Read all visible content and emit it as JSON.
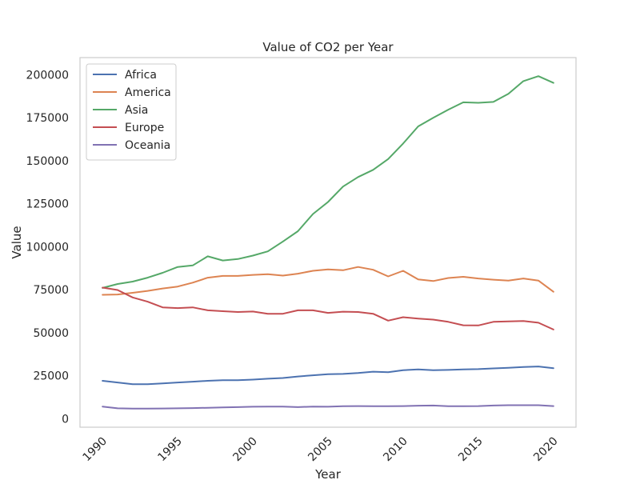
{
  "chart_data": {
    "type": "line",
    "title": "Value of CO2 per Year",
    "xlabel": "Year",
    "ylabel": "Value",
    "xlim": [
      1988.5,
      2021.5
    ],
    "ylim": [
      -5000,
      210000
    ],
    "xticks": [
      1990,
      1995,
      2000,
      2005,
      2010,
      2015,
      2020
    ],
    "yticks": [
      0,
      25000,
      50000,
      75000,
      100000,
      125000,
      150000,
      175000,
      200000
    ],
    "grid": false,
    "legend_position": "top-left",
    "x": [
      1990,
      1991,
      1992,
      1993,
      1994,
      1995,
      1996,
      1997,
      1998,
      1999,
      2000,
      2001,
      2002,
      2003,
      2004,
      2005,
      2006,
      2007,
      2008,
      2009,
      2010,
      2011,
      2012,
      2013,
      2014,
      2015,
      2016,
      2017,
      2018,
      2019,
      2020
    ],
    "series": [
      {
        "name": "Africa",
        "color": "#4c72b0",
        "values": [
          22000,
          21000,
          20000,
          20000,
          20500,
          21000,
          21500,
          22000,
          22300,
          22300,
          22700,
          23200,
          23600,
          24500,
          25200,
          25800,
          26000,
          26500,
          27300,
          27000,
          28200,
          28600,
          28200,
          28300,
          28600,
          28800,
          29200,
          29600,
          30000,
          30300,
          29300
        ]
      },
      {
        "name": "America",
        "color": "#dd8452",
        "values": [
          72000,
          72200,
          73200,
          74300,
          75700,
          76800,
          79100,
          82000,
          83000,
          83000,
          83600,
          84000,
          83200,
          84300,
          86000,
          86800,
          86300,
          88200,
          86600,
          82700,
          86000,
          81000,
          80000,
          81800,
          82500,
          81500,
          80800,
          80300,
          81500,
          80300,
          73800
        ]
      },
      {
        "name": "Asia",
        "color": "#55a868",
        "values": [
          76000,
          78300,
          79700,
          82000,
          84800,
          88200,
          89100,
          94400,
          92000,
          92800,
          94800,
          97300,
          103000,
          109000,
          119000,
          126000,
          135000,
          140500,
          144700,
          151000,
          160000,
          170000,
          175000,
          179700,
          184000,
          183700,
          184200,
          188900,
          196300,
          199200,
          195300
        ]
      },
      {
        "name": "Europe",
        "color": "#c44e52",
        "values": [
          76200,
          74800,
          70500,
          68000,
          64700,
          64300,
          64700,
          63000,
          62500,
          62000,
          62300,
          61000,
          61000,
          63000,
          63000,
          61500,
          62200,
          62000,
          61000,
          57000,
          59000,
          58200,
          57600,
          56300,
          54300,
          54200,
          56300,
          56500,
          56800,
          55800,
          51800
        ]
      },
      {
        "name": "Oceania",
        "color": "#8172b3",
        "values": [
          7000,
          6000,
          5800,
          5800,
          5900,
          6000,
          6100,
          6300,
          6500,
          6700,
          6900,
          7000,
          7000,
          6700,
          7000,
          6900,
          7200,
          7300,
          7200,
          7200,
          7300,
          7500,
          7600,
          7200,
          7200,
          7300,
          7600,
          7800,
          7800,
          7800,
          7300
        ]
      }
    ]
  }
}
